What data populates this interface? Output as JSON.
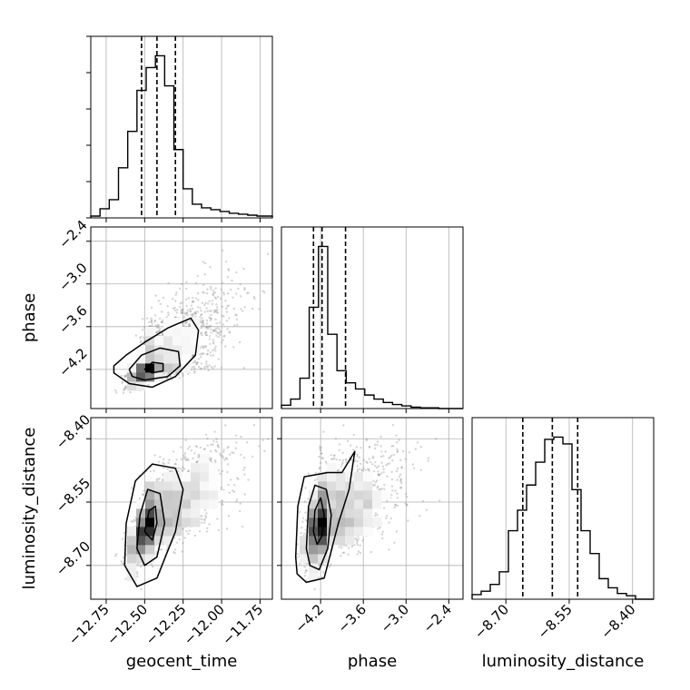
{
  "chart_data": {
    "type": "corner",
    "parameters": [
      "geocent_time",
      "phase",
      "luminosity_distance"
    ],
    "axis_labels": {
      "x": [
        "geocent_time",
        "phase",
        "luminosity_distance"
      ],
      "y": [
        "phase",
        "luminosity_distance"
      ]
    },
    "ranges": {
      "geocent_time": [
        -12.85,
        -11.67
      ],
      "phase": [
        -4.75,
        -2.2
      ],
      "luminosity_distance": [
        -8.78,
        -8.35
      ]
    },
    "ticks": {
      "geocent_time": [
        {
          "value": -12.75,
          "label": "−12.75"
        },
        {
          "value": -12.5,
          "label": "−12.50"
        },
        {
          "value": -12.25,
          "label": "−12.25"
        },
        {
          "value": -12.0,
          "label": "−12.00"
        },
        {
          "value": -11.75,
          "label": "−11.75"
        }
      ],
      "phase": [
        {
          "value": -4.2,
          "label": "−4.2"
        },
        {
          "value": -3.6,
          "label": "−3.6"
        },
        {
          "value": -3.0,
          "label": "−3.0"
        },
        {
          "value": -2.4,
          "label": "−2.4"
        }
      ],
      "luminosity_distance": [
        {
          "value": -8.7,
          "label": "−8.70"
        },
        {
          "value": -8.55,
          "label": "−8.55"
        },
        {
          "value": -8.4,
          "label": "−8.40"
        }
      ]
    },
    "quantiles": {
      "geocent_time": [
        -12.52,
        -12.42,
        -12.3
      ],
      "phase": [
        -4.3,
        -4.18,
        -3.85
      ],
      "luminosity_distance": [
        -8.66,
        -8.59,
        -8.53
      ]
    },
    "histograms": {
      "geocent_time": {
        "bin_edges": [
          -12.85,
          -12.79,
          -12.73,
          -12.67,
          -12.61,
          -12.55,
          -12.49,
          -12.43,
          -12.37,
          -12.31,
          -12.25,
          -12.19,
          -12.13,
          -12.07,
          -12.01,
          -11.95,
          -11.89,
          -11.83,
          -11.77,
          -11.71,
          -11.67
        ],
        "counts": [
          2,
          10,
          20,
          55,
          95,
          140,
          165,
          178,
          145,
          75,
          32,
          15,
          11,
          9,
          7,
          5,
          4,
          3,
          2,
          2
        ]
      },
      "phase": {
        "bin_edges": [
          -4.75,
          -4.62,
          -4.49,
          -4.36,
          -4.23,
          -4.1,
          -3.97,
          -3.84,
          -3.71,
          -3.58,
          -3.45,
          -3.32,
          -3.19,
          -3.06,
          -2.93,
          -2.8,
          -2.67,
          -2.54,
          -2.41,
          -2.28,
          -2.2
        ],
        "counts": [
          5,
          14,
          45,
          150,
          240,
          110,
          56,
          38,
          29,
          20,
          14,
          9,
          6,
          4,
          2,
          1,
          1,
          0,
          0,
          0
        ]
      },
      "luminosity_distance": {
        "bin_edges": [
          -8.78,
          -8.7585,
          -8.737,
          -8.7155,
          -8.694,
          -8.6725,
          -8.651,
          -8.6295,
          -8.608,
          -8.5865,
          -8.565,
          -8.5435,
          -8.522,
          -8.5005,
          -8.479,
          -8.4575,
          -8.436,
          -8.4145,
          -8.393,
          -8.3715,
          -8.35
        ],
        "counts": [
          4,
          7,
          13,
          24,
          60,
          78,
          100,
          120,
          140,
          142,
          136,
          96,
          60,
          40,
          18,
          10,
          5,
          3,
          0,
          0
        ]
      }
    },
    "scatter_model": {
      "geocent_time": {
        "mode": -12.45,
        "sd_left": 0.07,
        "sd_right": 0.25
      },
      "phase": {
        "mode": -4.15,
        "sd_left": 0.12,
        "sd_right": 0.5
      },
      "luminosity_distance": {
        "mode": -8.59,
        "sd_left": 0.05,
        "sd_right": 0.075
      },
      "correlation": 0.75,
      "points": 2200
    },
    "contours": {
      "phase_vs_geocent_time": [
        [
          [
            -12.7,
            -4.15
          ],
          [
            -12.62,
            -4.0
          ],
          [
            -12.5,
            -3.82
          ],
          [
            -12.35,
            -3.62
          ],
          [
            -12.2,
            -3.48
          ],
          [
            -12.15,
            -3.65
          ],
          [
            -12.17,
            -4.0
          ],
          [
            -12.3,
            -4.3
          ],
          [
            -12.45,
            -4.45
          ],
          [
            -12.6,
            -4.4
          ],
          [
            -12.7,
            -4.25
          ]
        ],
        [
          [
            -12.6,
            -4.2
          ],
          [
            -12.52,
            -4.0
          ],
          [
            -12.4,
            -3.9
          ],
          [
            -12.28,
            -3.95
          ],
          [
            -12.27,
            -4.15
          ],
          [
            -12.35,
            -4.3
          ],
          [
            -12.5,
            -4.35
          ],
          [
            -12.58,
            -4.3
          ]
        ],
        [
          [
            -12.5,
            -4.2
          ],
          [
            -12.45,
            -4.1
          ],
          [
            -12.38,
            -4.12
          ],
          [
            -12.38,
            -4.22
          ],
          [
            -12.45,
            -4.25
          ]
        ]
      ],
      "luminosity_distance_vs_geocent_time": [
        [
          [
            -12.63,
            -8.7
          ],
          [
            -12.62,
            -8.6
          ],
          [
            -12.56,
            -8.5
          ],
          [
            -12.45,
            -8.46
          ],
          [
            -12.3,
            -8.47
          ],
          [
            -12.25,
            -8.52
          ],
          [
            -12.3,
            -8.62
          ],
          [
            -12.42,
            -8.73
          ],
          [
            -12.55,
            -8.75
          ]
        ],
        [
          [
            -12.55,
            -8.66
          ],
          [
            -12.53,
            -8.58
          ],
          [
            -12.48,
            -8.52
          ],
          [
            -12.4,
            -8.53
          ],
          [
            -12.37,
            -8.6
          ],
          [
            -12.42,
            -8.68
          ],
          [
            -12.5,
            -8.7
          ]
        ],
        [
          [
            -12.5,
            -8.62
          ],
          [
            -12.47,
            -8.57
          ],
          [
            -12.43,
            -8.56
          ],
          [
            -12.42,
            -8.6
          ],
          [
            -12.45,
            -8.64
          ]
        ]
      ],
      "luminosity_distance_vs_phase": [
        [
          [
            -4.55,
            -8.68
          ],
          [
            -4.52,
            -8.56
          ],
          [
            -4.43,
            -8.49
          ],
          [
            -4.1,
            -8.48
          ],
          [
            -3.9,
            -8.48
          ],
          [
            -3.72,
            -8.43
          ],
          [
            -3.8,
            -8.52
          ],
          [
            -3.95,
            -8.6
          ],
          [
            -4.15,
            -8.73
          ],
          [
            -4.4,
            -8.74
          ],
          [
            -4.53,
            -8.72
          ]
        ],
        [
          [
            -4.4,
            -8.66
          ],
          [
            -4.37,
            -8.56
          ],
          [
            -4.28,
            -8.51
          ],
          [
            -4.12,
            -8.52
          ],
          [
            -4.05,
            -8.58
          ],
          [
            -4.1,
            -8.66
          ],
          [
            -4.22,
            -8.71
          ],
          [
            -4.35,
            -8.7
          ]
        ],
        [
          [
            -4.3,
            -8.62
          ],
          [
            -4.28,
            -8.57
          ],
          [
            -4.2,
            -8.54
          ],
          [
            -4.15,
            -8.58
          ],
          [
            -4.18,
            -8.63
          ],
          [
            -4.25,
            -8.65
          ]
        ]
      ]
    },
    "grid": true,
    "colors": {
      "lines": "#000000",
      "grid": "#b0b0b0",
      "points": "#888888"
    }
  }
}
